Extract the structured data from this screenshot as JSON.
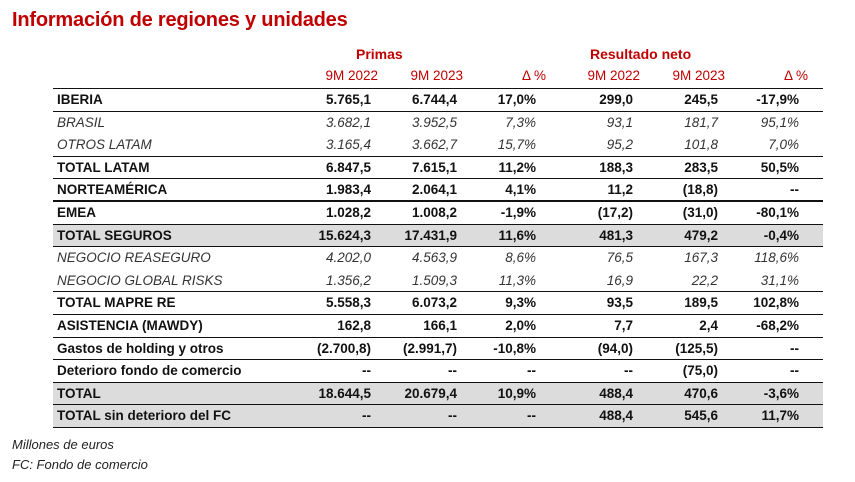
{
  "title": "Información de regiones y unidades",
  "groups": {
    "primas": "Primas",
    "resultado": "Resultado neto"
  },
  "columns": [
    "9M 2022",
    "9M 2023",
    "Δ %",
    "9M 2022",
    "9M 2023",
    "Δ %"
  ],
  "rows": [
    {
      "label": "IBERIA",
      "style": "b",
      "values": [
        "5.765,1",
        "6.744,4",
        "17,0%",
        "299,0",
        "245,5",
        "-17,9%"
      ]
    },
    {
      "label": "BRASIL",
      "style": "i",
      "values": [
        "3.682,1",
        "3.952,5",
        "7,3%",
        "93,1",
        "181,7",
        "95,1%"
      ]
    },
    {
      "label": "OTROS LATAM",
      "style": "i",
      "values": [
        "3.165,4",
        "3.662,7",
        "15,7%",
        "95,2",
        "101,8",
        "7,0%"
      ]
    },
    {
      "label": "TOTAL LATAM",
      "style": "b",
      "values": [
        "6.847,5",
        "7.615,1",
        "11,2%",
        "188,3",
        "283,5",
        "50,5%"
      ]
    },
    {
      "label": "NORTEAMÉRICA",
      "style": "b",
      "values": [
        "1.983,4",
        "2.064,1",
        "4,1%",
        "11,2",
        "(18,8)",
        "--"
      ]
    },
    {
      "label": "EMEA",
      "style": "b",
      "values": [
        "1.028,2",
        "1.008,2",
        "-1,9%",
        "(17,2)",
        "(31,0)",
        "-80,1%"
      ]
    },
    {
      "label": "TOTAL SEGUROS",
      "style": "b gray",
      "values": [
        "15.624,3",
        "17.431,9",
        "11,6%",
        "481,3",
        "479,2",
        "-0,4%"
      ]
    },
    {
      "label": "NEGOCIO REASEGURO",
      "style": "i",
      "values": [
        "4.202,0",
        "4.563,9",
        "8,6%",
        "76,5",
        "167,3",
        "118,6%"
      ]
    },
    {
      "label": "NEGOCIO GLOBAL RISKS",
      "style": "i",
      "values": [
        "1.356,2",
        "1.509,3",
        "11,3%",
        "16,9",
        "22,2",
        "31,1%"
      ]
    },
    {
      "label": "TOTAL MAPRE RE",
      "style": "b",
      "values": [
        "5.558,3",
        "6.073,2",
        "9,3%",
        "93,5",
        "189,5",
        "102,8%"
      ]
    },
    {
      "label": "ASISTENCIA (MAWDY)",
      "style": "b",
      "values": [
        "162,8",
        "166,1",
        "2,0%",
        "7,7",
        "2,4",
        "-68,2%"
      ]
    },
    {
      "label": "Gastos de holding y otros",
      "style": "b",
      "values": [
        "(2.700,8)",
        "(2.991,7)",
        "-10,8%",
        "(94,0)",
        "(125,5)",
        "--"
      ]
    },
    {
      "label": "Deterioro fondo de comercio",
      "style": "b",
      "values": [
        "--",
        "--",
        "--",
        "--",
        "(75,0)",
        "--"
      ]
    },
    {
      "label": "TOTAL",
      "style": "b gray",
      "values": [
        "18.644,5",
        "20.679,4",
        "10,9%",
        "488,4",
        "470,6",
        "-3,6%"
      ]
    },
    {
      "label": "TOTAL sin deterioro del FC",
      "style": "b gray",
      "values": [
        "--",
        "--",
        "--",
        "488,4",
        "545,6",
        "11,7%"
      ]
    }
  ],
  "footnotes": [
    "Millones de euros",
    "FC: Fondo de comercio"
  ]
}
